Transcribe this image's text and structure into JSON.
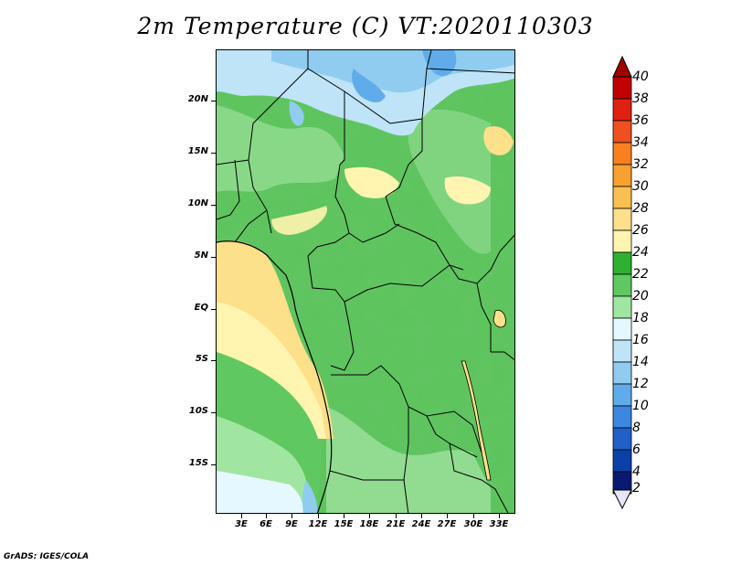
{
  "title": "2m Temperature (C) VT:2020110303",
  "credit": "GrADS: IGES/COLA",
  "map": {
    "variable": "2m Temperature",
    "unit": "C",
    "valid_time": "2020110303",
    "lon_range": [
      0,
      36
    ],
    "lat_range": [
      -20,
      25
    ],
    "lat_ticks": [
      {
        "label": "20N",
        "value": 20
      },
      {
        "label": "15N",
        "value": 15
      },
      {
        "label": "10N",
        "value": 10
      },
      {
        "label": "5N",
        "value": 5
      },
      {
        "label": "EQ",
        "value": 0
      },
      {
        "label": "5S",
        "value": -5
      },
      {
        "label": "10S",
        "value": -10
      },
      {
        "label": "15S",
        "value": -15
      }
    ],
    "lon_ticks": [
      {
        "label": "3E",
        "value": 3
      },
      {
        "label": "6E",
        "value": 6
      },
      {
        "label": "9E",
        "value": 9
      },
      {
        "label": "12E",
        "value": 12
      },
      {
        "label": "15E",
        "value": 15
      },
      {
        "label": "18E",
        "value": 18
      },
      {
        "label": "21E",
        "value": 21
      },
      {
        "label": "24E",
        "value": 24
      },
      {
        "label": "27E",
        "value": 27
      },
      {
        "label": "30E",
        "value": 30
      },
      {
        "label": "33E",
        "value": 33
      }
    ]
  },
  "colorbar": {
    "labels": [
      "40",
      "38",
      "36",
      "34",
      "32",
      "30",
      "28",
      "26",
      "24",
      "22",
      "20",
      "18",
      "16",
      "14",
      "12",
      "10",
      "8",
      "6",
      "4",
      "2"
    ],
    "colors": [
      "#a00000",
      "#c00000",
      "#e02010",
      "#f05020",
      "#f88020",
      "#f8a030",
      "#f8c050",
      "#fde08a",
      "#fff4b0",
      "#30b030",
      "#60c860",
      "#a0e6a0",
      "#e6f8ff",
      "#bfe4f8",
      "#90ccf0",
      "#60acea",
      "#3c88e0",
      "#2060c8",
      "#0a40a8",
      "#0a1a70"
    ],
    "top_color": "#a00000",
    "bottom_color": "#e6e6fa"
  }
}
